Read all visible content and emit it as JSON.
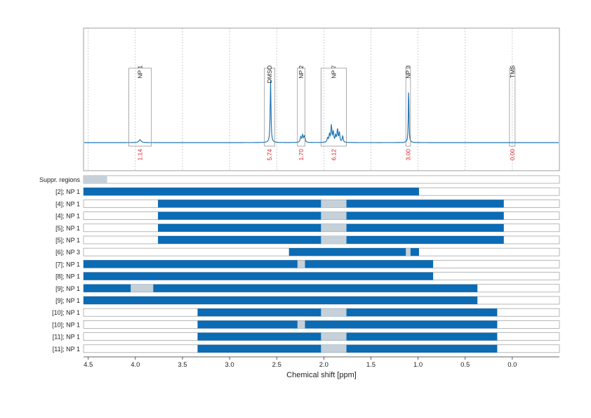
{
  "chart_data": {
    "type": "line",
    "xlabel": "Chemical shift [ppm]",
    "xlim": [
      4.55,
      -0.5
    ],
    "x_reversed": true,
    "x_ticks": [
      {
        "value": 4.5,
        "label": "4.5"
      },
      {
        "value": 4.0,
        "label": "4.0"
      },
      {
        "value": 3.5,
        "label": "3.5"
      },
      {
        "value": 3.0,
        "label": "3.0"
      },
      {
        "value": 2.5,
        "label": "2.5"
      },
      {
        "value": 2.0,
        "label": "2.0"
      },
      {
        "value": 1.5,
        "label": "1.5"
      },
      {
        "value": 1.0,
        "label": "1.0"
      },
      {
        "value": 0.5,
        "label": "0.5"
      },
      {
        "value": 0.0,
        "label": "0.0"
      }
    ],
    "grid": true,
    "colors": {
      "spectrum": "#1f77b4",
      "bar": "#0b6bb5",
      "suppressed": "#c5d0d8",
      "integral": "#e31a1c",
      "frame": "#888888"
    },
    "spectrum": {
      "baseline_max": 1.0,
      "peaks": [
        {
          "shift": 3.95,
          "height": 0.045,
          "width": 0.013
        },
        {
          "shift": 2.565,
          "height": 0.96,
          "width": 0.005
        },
        {
          "shift": 2.245,
          "height": 0.08,
          "width": 0.007
        },
        {
          "shift": 2.225,
          "height": 0.11,
          "width": 0.007
        },
        {
          "shift": 2.205,
          "height": 0.1,
          "width": 0.007
        },
        {
          "shift": 1.96,
          "height": 0.07,
          "width": 0.006
        },
        {
          "shift": 1.94,
          "height": 0.12,
          "width": 0.006
        },
        {
          "shift": 1.92,
          "height": 0.26,
          "width": 0.006
        },
        {
          "shift": 1.9,
          "height": 0.16,
          "width": 0.006
        },
        {
          "shift": 1.875,
          "height": 0.1,
          "width": 0.006
        },
        {
          "shift": 1.855,
          "height": 0.2,
          "width": 0.006
        },
        {
          "shift": 1.835,
          "height": 0.15,
          "width": 0.006
        },
        {
          "shift": 1.8,
          "height": 0.1,
          "width": 0.006
        },
        {
          "shift": 1.1,
          "height": 0.87,
          "width": 0.004
        }
      ]
    },
    "regions": [
      {
        "label": "NP 1",
        "from": 4.07,
        "to": 3.83,
        "box_top": 0.62,
        "integral": "1.14"
      },
      {
        "label": "DMSO",
        "from": 2.63,
        "to": 2.52,
        "box_top": 0.62,
        "integral": "5.74"
      },
      {
        "label": "NP 2",
        "from": 2.28,
        "to": 2.2,
        "box_top": 0.62,
        "integral": "1.70"
      },
      {
        "label": "NP 7",
        "from": 2.03,
        "to": 1.76,
        "box_top": 0.62,
        "integral": "6.12"
      },
      {
        "label": "NP 3",
        "from": 1.13,
        "to": 1.08,
        "box_top": 0.62,
        "integral": "3.00"
      },
      {
        "label": "TMS",
        "from": 0.03,
        "to": -0.03,
        "box_top": 0.62,
        "integral": "0.00"
      }
    ],
    "rows": [
      {
        "label": "Suppr. regions",
        "bars": [],
        "gaps": [],
        "suppressed": [
          [
            4.55,
            4.3
          ]
        ]
      },
      {
        "label": "[2]; NP 1",
        "bars": [
          [
            4.55,
            0.99
          ]
        ],
        "gaps": []
      },
      {
        "label": "[4]; NP 1",
        "bars": [
          [
            3.76,
            0.09
          ]
        ],
        "gaps": [
          [
            2.03,
            1.76
          ]
        ]
      },
      {
        "label": "[4]; NP 1",
        "bars": [
          [
            3.76,
            0.09
          ]
        ],
        "gaps": [
          [
            2.03,
            1.76
          ]
        ]
      },
      {
        "label": "[5]; NP 1",
        "bars": [
          [
            3.76,
            0.09
          ]
        ],
        "gaps": [
          [
            2.03,
            1.76
          ]
        ]
      },
      {
        "label": "[5]; NP 1",
        "bars": [
          [
            3.76,
            0.09
          ]
        ],
        "gaps": [
          [
            2.03,
            1.76
          ]
        ]
      },
      {
        "label": "[6]; NP 3",
        "bars": [
          [
            2.37,
            0.99
          ]
        ],
        "gaps": [
          [
            1.13,
            1.08
          ]
        ]
      },
      {
        "label": "[7]; NP 1",
        "bars": [
          [
            4.55,
            0.84
          ]
        ],
        "gaps": [
          [
            2.28,
            2.2
          ]
        ]
      },
      {
        "label": "[8]; NP 1",
        "bars": [
          [
            4.55,
            0.84
          ]
        ],
        "gaps": []
      },
      {
        "label": "[9]; NP 1",
        "bars": [
          [
            4.55,
            0.37
          ]
        ],
        "gaps": [
          [
            4.05,
            3.81
          ]
        ]
      },
      {
        "label": "[9]; NP 1",
        "bars": [
          [
            4.55,
            0.37
          ]
        ],
        "gaps": []
      },
      {
        "label": "[10]; NP 1",
        "bars": [
          [
            3.34,
            0.16
          ]
        ],
        "gaps": [
          [
            2.03,
            1.76
          ]
        ]
      },
      {
        "label": "[10]; NP 1",
        "bars": [
          [
            3.34,
            0.16
          ]
        ],
        "gaps": [
          [
            2.28,
            2.2
          ]
        ]
      },
      {
        "label": "[11]; NP 1",
        "bars": [
          [
            3.34,
            0.16
          ]
        ],
        "gaps": [
          [
            2.03,
            1.76
          ]
        ]
      },
      {
        "label": "[11]; NP 1",
        "bars": [
          [
            3.34,
            0.16
          ]
        ],
        "gaps": [
          [
            2.03,
            1.76
          ]
        ]
      }
    ]
  }
}
